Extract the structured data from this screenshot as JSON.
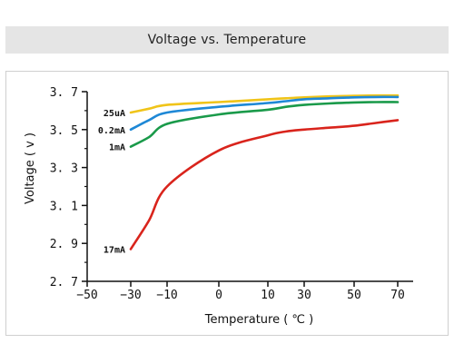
{
  "chart_data": {
    "type": "line",
    "title": "Voltage vs. Temperature",
    "xlabel": "Temperature ( ℃ )",
    "ylabel": "Voltage ( v )",
    "x_ticks": [
      "-50",
      "-30",
      "-10",
      "0",
      "10",
      "30",
      "50",
      "70"
    ],
    "y_ticks": [
      "2.7",
      "2.9",
      "3.1",
      "3.3",
      "3.5",
      "3.7"
    ],
    "ylim": [
      2.7,
      3.7
    ],
    "grid": false,
    "series": [
      {
        "name": "25uA",
        "color": "#f0c419",
        "x": [
          "-30",
          "-20",
          "-10",
          "0",
          "10",
          "20",
          "30",
          "40",
          "50",
          "60",
          "70"
        ],
        "y": [
          3.59,
          3.61,
          3.63,
          3.645,
          3.66,
          3.665,
          3.67,
          3.675,
          3.678,
          3.68,
          3.68
        ]
      },
      {
        "name": "0.2mA",
        "color": "#1e88d6",
        "x": [
          "-30",
          "-20",
          "-10",
          "0",
          "10",
          "20",
          "30",
          "40",
          "50",
          "60",
          "70"
        ],
        "y": [
          3.5,
          3.55,
          3.59,
          3.62,
          3.64,
          3.65,
          3.66,
          3.665,
          3.67,
          3.672,
          3.672
        ]
      },
      {
        "name": "1mA",
        "color": "#1a9a4a",
        "x": [
          "-30",
          "-20",
          "-10",
          "0",
          "10",
          "20",
          "30",
          "40",
          "50",
          "60",
          "70"
        ],
        "y": [
          3.41,
          3.46,
          3.53,
          3.58,
          3.605,
          3.62,
          3.63,
          3.638,
          3.643,
          3.645,
          3.645
        ]
      },
      {
        "name": "17mA",
        "color": "#d9241c",
        "x": [
          "-30",
          "-20",
          "-10",
          "0",
          "10",
          "20",
          "30",
          "40",
          "50",
          "60",
          "70"
        ],
        "y": [
          2.87,
          3.02,
          3.2,
          3.39,
          3.47,
          3.49,
          3.5,
          3.51,
          3.52,
          3.535,
          3.55
        ]
      }
    ]
  }
}
